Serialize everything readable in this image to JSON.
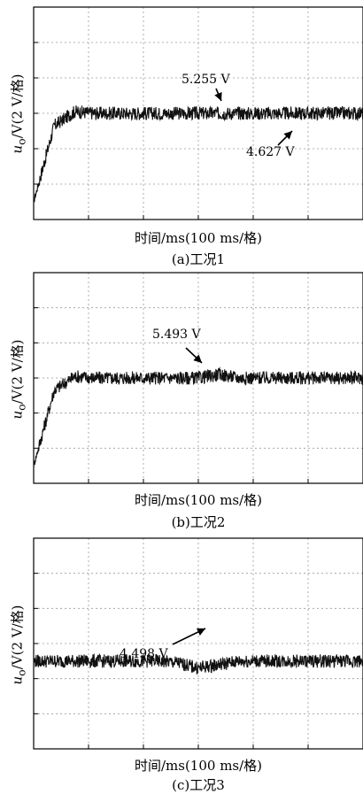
{
  "chart_data": [
    {
      "type": "line",
      "caption": "(a)工况1",
      "xlabel": "时间/ms(100 ms/格)",
      "ylabel_sym": "u",
      "ylabel_sub": "o",
      "ylabel_rest": "/V(2 V/格)",
      "grid": true,
      "x_divisions": 6,
      "y_divisions": 6,
      "series": [
        {
          "values": [
            0,
            4.3,
            5.1,
            5.0,
            5.0,
            5.0,
            5.0,
            5.0,
            5.0,
            5.0,
            5.0,
            5.0,
            5.0,
            5.0,
            5.0,
            5.0,
            5.0
          ]
        }
      ],
      "annotations": [
        {
          "text": "5.255 V"
        },
        {
          "text": "4.627 V"
        }
      ]
    },
    {
      "type": "line",
      "caption": "(b)工况2",
      "xlabel": "时间/ms(100 ms/格)",
      "ylabel_sym": "u",
      "ylabel_sub": "o",
      "ylabel_rest": "/V(2 V/格)",
      "grid": true,
      "x_divisions": 6,
      "y_divisions": 6,
      "series": [
        {
          "values": [
            0,
            4.3,
            5.1,
            5.0,
            5.0,
            5.0,
            5.0,
            5.0,
            5.0,
            5.2,
            5.0,
            5.0,
            5.0,
            5.0,
            5.0,
            5.0,
            5.0
          ]
        }
      ],
      "annotations": [
        {
          "text": "5.493 V"
        }
      ]
    },
    {
      "type": "line",
      "caption": "(c)工况3",
      "xlabel": "时间/ms(100 ms/格)",
      "ylabel_sym": "u",
      "ylabel_sub": "o",
      "ylabel_rest": "/V(2 V/格)",
      "grid": true,
      "x_divisions": 6,
      "y_divisions": 6,
      "series": [
        {
          "values": [
            5.0,
            5.0,
            5.0,
            5.0,
            5.0,
            5.0,
            5.0,
            4.9,
            4.6,
            4.8,
            5.0,
            5.0,
            5.0,
            5.0,
            5.0,
            5.0,
            5.0
          ]
        }
      ],
      "annotations": [
        {
          "text": "4.498 V"
        }
      ]
    }
  ]
}
